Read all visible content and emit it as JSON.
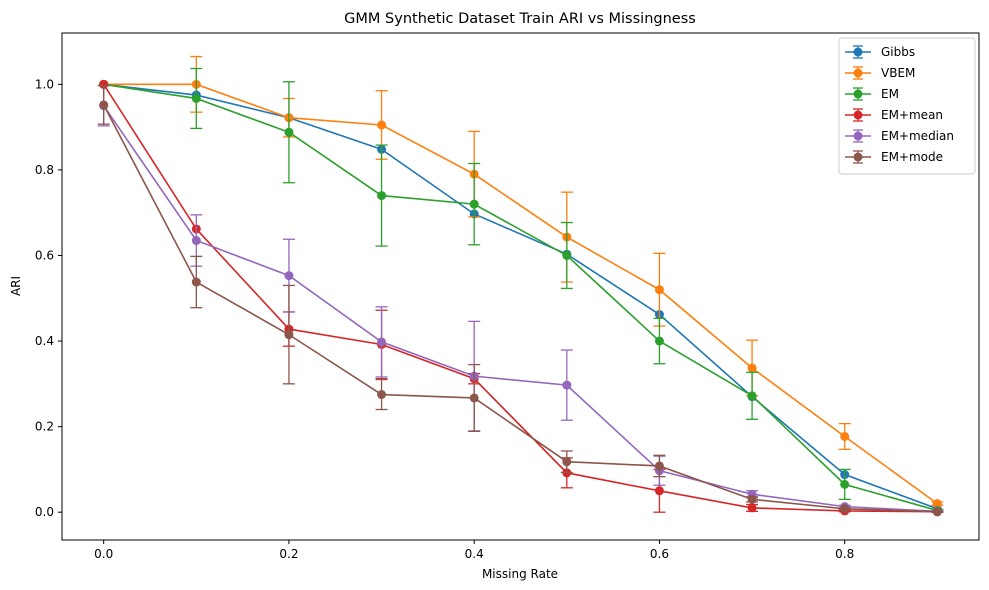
{
  "chart_data": {
    "type": "line",
    "title": "GMM Synthetic Dataset Train ARI vs Missingness",
    "xlabel": "Missing Rate",
    "ylabel": "ARI",
    "xlim": [
      -0.045,
      0.945
    ],
    "ylim": [
      -0.065,
      1.12
    ],
    "xticks": [
      0.0,
      0.2,
      0.4,
      0.6,
      0.8
    ],
    "yticks": [
      0.0,
      0.2,
      0.4,
      0.6,
      0.8,
      1.0
    ],
    "tick_labels_x": [
      "0.0",
      "0.2",
      "0.4",
      "0.6",
      "0.8"
    ],
    "tick_labels_y": [
      "0.0",
      "0.2",
      "0.4",
      "0.6",
      "0.8",
      "1.0"
    ],
    "grid": false,
    "legend_position": "top-right",
    "x": [
      0.0,
      0.1,
      0.2,
      0.3,
      0.4,
      0.5,
      0.6,
      0.7,
      0.8,
      0.9
    ],
    "series": [
      {
        "name": "Gibbs",
        "color": "#1f77b4",
        "values": [
          1.0,
          0.975,
          0.922,
          0.848,
          0.697,
          0.603,
          0.462,
          0.27,
          0.088,
          0.008
        ],
        "errors": [
          0.0,
          0.0,
          0.0,
          0.0,
          0.0,
          0.0,
          0.0,
          0.0,
          0.0,
          0.0
        ]
      },
      {
        "name": "VBEM",
        "color": "#ff7f0e",
        "values": [
          1.0,
          1.0,
          0.922,
          0.905,
          0.79,
          0.643,
          0.52,
          0.337,
          0.177,
          0.02
        ],
        "errors": [
          0.0,
          0.065,
          0.045,
          0.08,
          0.1,
          0.105,
          0.085,
          0.065,
          0.03,
          0.004
        ]
      },
      {
        "name": "EM",
        "color": "#2ca02c",
        "values": [
          1.0,
          0.967,
          0.888,
          0.74,
          0.72,
          0.6,
          0.4,
          0.272,
          0.065,
          0.004
        ],
        "errors": [
          0.0,
          0.07,
          0.118,
          0.118,
          0.095,
          0.077,
          0.053,
          0.055,
          0.035,
          0.003
        ]
      },
      {
        "name": "EM+mean",
        "color": "#d62728",
        "values": [
          1.0,
          0.662,
          0.428,
          0.392,
          0.312,
          0.092,
          0.05,
          0.01,
          0.003,
          0.001
        ],
        "errors": [
          0.0,
          0.0,
          0.04,
          0.08,
          0.012,
          0.035,
          0.05,
          0.008,
          0.002,
          0.001
        ]
      },
      {
        "name": "EM+median",
        "color": "#9467bd",
        "values": [
          0.95,
          0.635,
          0.553,
          0.398,
          0.318,
          0.297,
          0.097,
          0.042,
          0.013,
          0.002
        ],
        "errors": [
          0.047,
          0.06,
          0.085,
          0.082,
          0.128,
          0.082,
          0.034,
          0.008,
          0.003,
          0.002
        ]
      },
      {
        "name": "EM+mode",
        "color": "#8c564b",
        "values": [
          0.952,
          0.538,
          0.415,
          0.275,
          0.267,
          0.118,
          0.108,
          0.03,
          0.008,
          0.001
        ],
        "errors": [
          0.045,
          0.06,
          0.115,
          0.035,
          0.078,
          0.025,
          0.025,
          0.006,
          0.002,
          0.001
        ]
      }
    ]
  }
}
